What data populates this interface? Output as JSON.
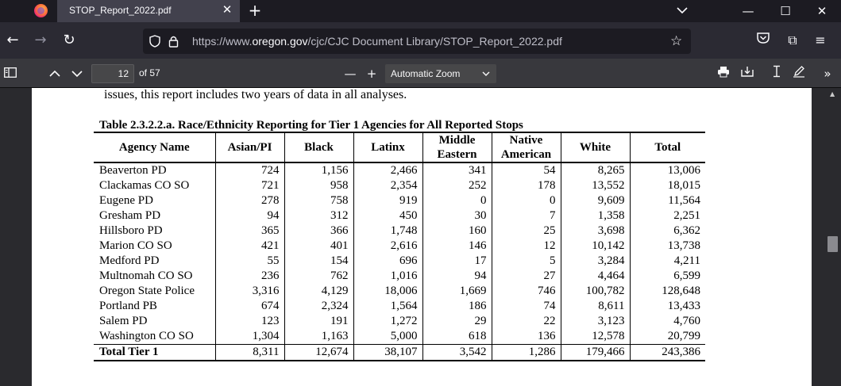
{
  "browser": {
    "tab_title": "STOP_Report_2022.pdf",
    "tab_close": "✕",
    "new_tab": "+",
    "url_prefix": "https://www.",
    "url_domain": "oregon.gov",
    "url_path": "/cjc/CJC Document Library/STOP_Report_2022.pdf",
    "win_minimize": "—",
    "win_maximize": "☐",
    "win_close": "✕"
  },
  "pdf_toolbar": {
    "page_number": "12",
    "page_of": "of 57",
    "zoom_label": "Automatic Zoom"
  },
  "document": {
    "intro_line": "issues, this report includes two years of data in all analyses.",
    "table_caption": "Table 2.3.2.2.a. Race/Ethnicity Reporting for Tier 1 Agencies for All Reported Stops",
    "headers": [
      "Agency Name",
      "Asian/PI",
      "Black",
      "Latinx",
      "Middle Eastern",
      "Native American",
      "White",
      "Total"
    ],
    "rows": [
      [
        "Beaverton PD",
        "724",
        "1,156",
        "2,466",
        "341",
        "54",
        "8,265",
        "13,006"
      ],
      [
        "Clackamas CO SO",
        "721",
        "958",
        "2,354",
        "252",
        "178",
        "13,552",
        "18,015"
      ],
      [
        "Eugene PD",
        "278",
        "758",
        "919",
        "0",
        "0",
        "9,609",
        "11,564"
      ],
      [
        "Gresham PD",
        "94",
        "312",
        "450",
        "30",
        "7",
        "1,358",
        "2,251"
      ],
      [
        "Hillsboro PD",
        "365",
        "366",
        "1,748",
        "160",
        "25",
        "3,698",
        "6,362"
      ],
      [
        "Marion CO SO",
        "421",
        "401",
        "2,616",
        "146",
        "12",
        "10,142",
        "13,738"
      ],
      [
        "Medford PD",
        "55",
        "154",
        "696",
        "17",
        "5",
        "3,284",
        "4,211"
      ],
      [
        "Multnomah CO SO",
        "236",
        "762",
        "1,016",
        "94",
        "27",
        "4,464",
        "6,599"
      ],
      [
        "Oregon State Police",
        "3,316",
        "4,129",
        "18,006",
        "1,669",
        "746",
        "100,782",
        "128,648"
      ],
      [
        "Portland PB",
        "674",
        "2,324",
        "1,564",
        "186",
        "74",
        "8,611",
        "13,433"
      ],
      [
        "Salem PD",
        "123",
        "191",
        "1,272",
        "29",
        "22",
        "3,123",
        "4,760"
      ],
      [
        "Washington CO SO",
        "1,304",
        "1,163",
        "5,000",
        "618",
        "136",
        "12,578",
        "20,799"
      ]
    ],
    "total_row": [
      "Total Tier 1",
      "8,311",
      "12,674",
      "38,107",
      "3,542",
      "1,286",
      "179,466",
      "243,386"
    ]
  }
}
